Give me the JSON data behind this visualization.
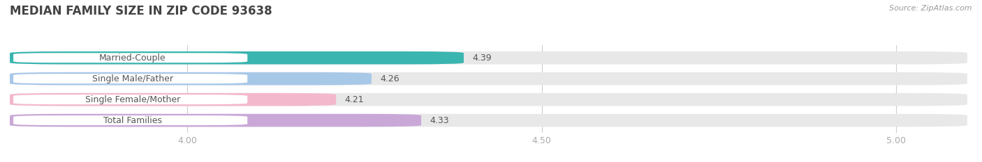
{
  "title": "MEDIAN FAMILY SIZE IN ZIP CODE 93638",
  "source": "Source: ZipAtlas.com",
  "categories": [
    "Married-Couple",
    "Single Male/Father",
    "Single Female/Mother",
    "Total Families"
  ],
  "values": [
    4.39,
    4.26,
    4.21,
    4.33
  ],
  "bar_colors": [
    "#3ab5b0",
    "#a8c8e8",
    "#f4b8cc",
    "#c9a8d8"
  ],
  "bar_bg_color": "#e8e8e8",
  "xlim_min": 3.75,
  "xlim_max": 5.1,
  "x_ticks": [
    4.0,
    4.5,
    5.0
  ],
  "title_fontsize": 12,
  "label_fontsize": 9,
  "value_fontsize": 9,
  "tick_fontsize": 9,
  "bar_height": 0.62,
  "background_color": "#ffffff",
  "title_color": "#444444",
  "label_color": "#555555",
  "value_color": "#555555",
  "tick_color": "#aaaaaa",
  "source_color": "#999999"
}
